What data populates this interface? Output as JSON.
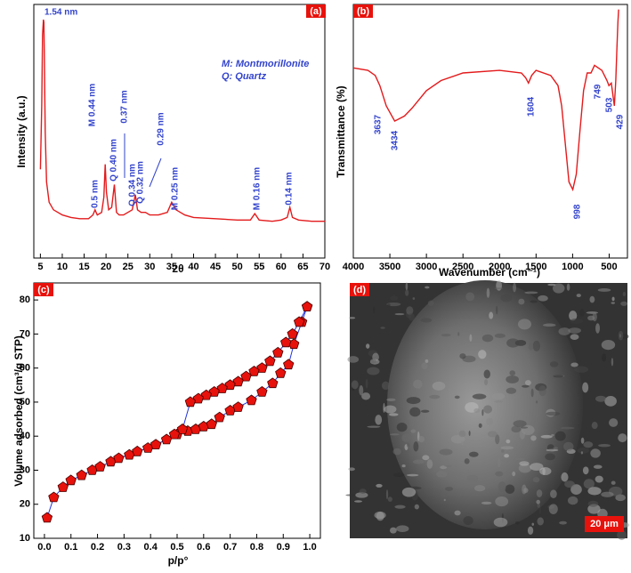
{
  "chart_data": [
    {
      "type": "line",
      "panel_label": "(a)",
      "x_label": "2θ",
      "y_label": "Intensity (a.u.)",
      "color": "#e31a1c",
      "x": [
        5,
        5.3,
        5.5,
        5.7,
        5.8,
        5.9,
        6.1,
        6.4,
        7,
        8,
        10,
        12,
        14,
        16,
        17,
        17.5,
        18,
        19,
        19.5,
        19.8,
        20.1,
        20.6,
        21.3,
        21.9,
        22.4,
        23,
        24,
        25,
        26,
        26.7,
        27.2,
        28,
        29,
        30,
        32,
        34,
        35,
        36,
        38,
        40,
        45,
        50,
        53,
        54,
        55,
        58,
        60,
        61.4,
        62,
        62.6,
        64,
        67,
        70
      ],
      "values": [
        35,
        60,
        88,
        94,
        93,
        80,
        50,
        30,
        22,
        19,
        17,
        16,
        15.5,
        15.5,
        17,
        19,
        17,
        18,
        24,
        37,
        26,
        19,
        20,
        29,
        18,
        17,
        17,
        18,
        19,
        25,
        19,
        18,
        18,
        17,
        17,
        18,
        22,
        19,
        17,
        16,
        15.5,
        15,
        15,
        17.5,
        15,
        14.5,
        15,
        16,
        20,
        16,
        15,
        14.5,
        14.5
      ],
      "xlim": [
        3.5,
        70
      ],
      "ylim": [
        0,
        100
      ],
      "xticks": [
        5,
        10,
        15,
        20,
        25,
        30,
        35,
        40,
        45,
        50,
        55,
        60,
        65,
        70
      ],
      "annotations": [
        "1.54 nm",
        "0.5 nm",
        "M 0.44 nm",
        "Q 0.40 nm",
        "0.37 nm",
        "Q 0.34 nm",
        "Q 0.32 nm",
        "0.29 nm",
        "M 0.25 nm",
        "M 0.16 nm",
        "0.14 nm"
      ],
      "legend_notes": [
        "M: Montmorillonite",
        "Q: Quartz"
      ]
    },
    {
      "type": "line",
      "panel_label": "(b)",
      "x_label": "Wavenumber (cm⁻¹)",
      "y_label": "Transmittance (%)",
      "color": "#e31a1c",
      "x": [
        4000,
        3800,
        3700,
        3637,
        3550,
        3434,
        3300,
        3200,
        3000,
        2800,
        2500,
        2000,
        1700,
        1640,
        1604,
        1560,
        1500,
        1300,
        1200,
        1150,
        1100,
        1050,
        998,
        950,
        900,
        850,
        800,
        749,
        700,
        600,
        530,
        503,
        470,
        429,
        410,
        395,
        380,
        370
      ],
      "values": [
        75,
        74,
        72,
        68,
        60,
        54,
        56,
        59,
        66,
        70,
        73,
        74,
        73,
        71,
        69,
        72,
        74,
        72,
        68,
        60,
        45,
        30,
        27,
        33,
        50,
        66,
        73,
        73,
        76,
        74,
        70,
        68,
        69,
        60,
        70,
        82,
        93,
        98
      ],
      "xlim": [
        4000,
        250
      ],
      "ylim": [
        0,
        100
      ],
      "xticks": [
        4000,
        3500,
        3000,
        2500,
        2000,
        1500,
        1000,
        500
      ],
      "annotations": [
        "3637",
        "3434",
        "1604",
        "998",
        "749",
        "503",
        "429"
      ]
    },
    {
      "type": "scatter-line",
      "panel_label": "(c)",
      "x_label": "p/p°",
      "y_label": "Volume adsorbed (cm³/g STP)",
      "marker_color": "#e8120c",
      "line_color": "#2233dd",
      "series": [
        {
          "x": [
            0.01,
            0.035,
            0.07,
            0.1,
            0.14,
            0.18,
            0.21,
            0.25,
            0.28,
            0.32,
            0.35,
            0.39,
            0.42,
            0.46,
            0.5,
            0.54,
            0.57,
            0.6,
            0.63,
            0.66,
            0.7,
            0.73,
            0.78,
            0.82,
            0.86,
            0.89,
            0.92,
            0.94,
            0.97,
            0.99
          ],
          "values": [
            16,
            22,
            25,
            27,
            28.5,
            30,
            31,
            32.5,
            33.5,
            34.5,
            35.5,
            36.5,
            37.5,
            39,
            40.5,
            41.5,
            42,
            42.8,
            43.5,
            45.5,
            47.5,
            48.5,
            50.5,
            53,
            55.5,
            58.5,
            61,
            67,
            73.5,
            78
          ]
        },
        {
          "x": [
            0.99,
            0.96,
            0.935,
            0.91,
            0.88,
            0.85,
            0.82,
            0.79,
            0.76,
            0.73,
            0.7,
            0.67,
            0.64,
            0.61,
            0.58,
            0.55,
            0.52,
            0.49
          ],
          "values": [
            78,
            73.5,
            70,
            67.5,
            64.5,
            62,
            60,
            59,
            57.5,
            56,
            55,
            54,
            53,
            52,
            51,
            50,
            42,
            40.5
          ]
        }
      ],
      "xlim": [
        -0.04,
        1.04
      ],
      "ylim": [
        10,
        85
      ],
      "xticks": [
        {
          "value": 0,
          "label": "0.0"
        },
        0.1,
        0.2,
        0.3,
        0.4,
        0.5,
        0.6,
        0.7,
        0.8,
        0.9,
        {
          "value": 1,
          "label": "1.0"
        }
      ],
      "yticks": [
        10,
        20,
        30,
        40,
        50,
        60,
        70,
        80
      ]
    }
  ],
  "image_panel": {
    "panel_label": "(d)",
    "scale_bar": "20 μm"
  }
}
